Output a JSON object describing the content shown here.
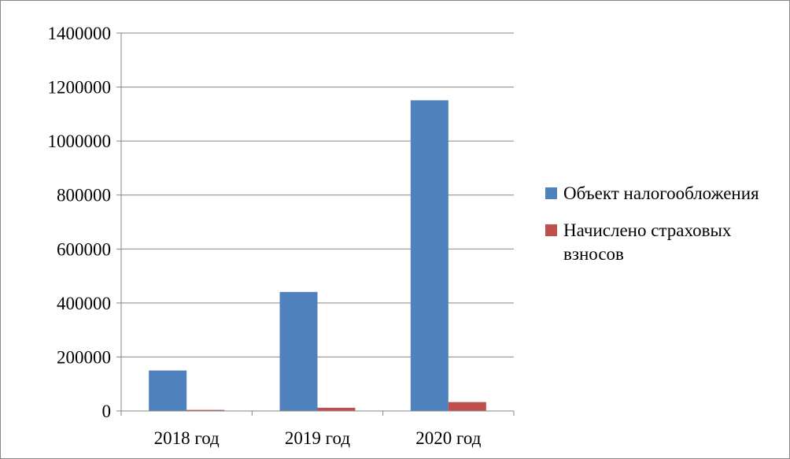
{
  "chart_data": {
    "type": "bar",
    "categories": [
      "2018 год",
      "2019 год",
      "2020 год"
    ],
    "series": [
      {
        "name": "Объект налогообложения",
        "values": [
          150000,
          441000,
          1151000
        ],
        "color": "#4f81bd"
      },
      {
        "name": "Начислено страховых взносов",
        "values": [
          4000,
          12000,
          33000
        ],
        "color": "#c0504d"
      }
    ],
    "ylim": [
      0,
      1400000
    ],
    "yticks": [
      0,
      200000,
      400000,
      600000,
      800000,
      1000000,
      1200000,
      1400000
    ],
    "grid": true,
    "legend_position": "right"
  }
}
